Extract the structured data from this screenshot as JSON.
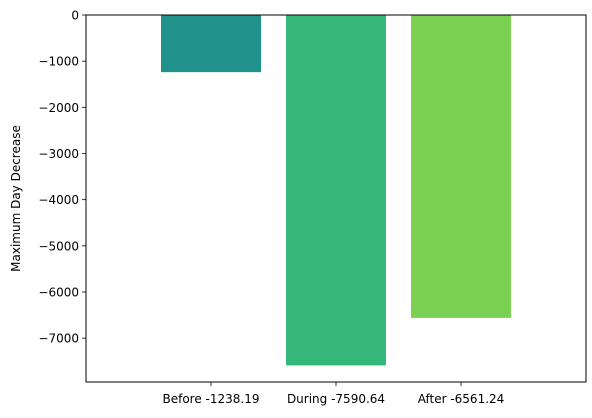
{
  "chart_data": {
    "type": "bar",
    "title": "",
    "xlabel": "",
    "ylabel": "Maximum Day Decrease",
    "categories": [
      "Before -1238.19",
      "During -7590.64",
      "After -6561.24"
    ],
    "values": [
      -1238.19,
      -7590.64,
      -6561.24
    ],
    "colors": [
      "#21918c",
      "#35b779",
      "#7ad151"
    ],
    "ylim": [
      -7950,
      0
    ],
    "yticks": [
      0,
      -1000,
      -2000,
      -3000,
      -4000,
      -5000,
      -6000,
      -7000
    ],
    "ytick_labels": [
      "0",
      "−1000",
      "−2000",
      "−3000",
      "−4000",
      "−5000",
      "−6000",
      "−7000"
    ],
    "baseline_line": true,
    "grid": false,
    "legend": "none"
  }
}
